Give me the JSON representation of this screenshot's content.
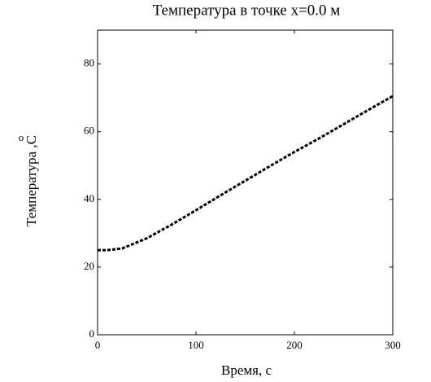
{
  "chart_data": {
    "type": "line",
    "title": "Температура в точке x=0.0 м",
    "x_label": "Время, с",
    "y_label": "Температура ,C",
    "y_label_degree": "o",
    "x": [
      0,
      10,
      25,
      50,
      75,
      100,
      125,
      150,
      175,
      200,
      225,
      250,
      275,
      300
    ],
    "series": [
      {
        "color": "#000000",
        "values": [
          25,
          25,
          25.5,
          28.5,
          32.5,
          36.8,
          41.2,
          45.5,
          49.8,
          54,
          58,
          62.2,
          66.4,
          70.5
        ]
      }
    ],
    "xlim": [
      0,
      300
    ],
    "xticks": [
      0,
      100,
      200,
      300
    ],
    "ylim": [
      0,
      90
    ],
    "yticks": [
      0,
      20,
      40,
      60,
      80
    ]
  }
}
